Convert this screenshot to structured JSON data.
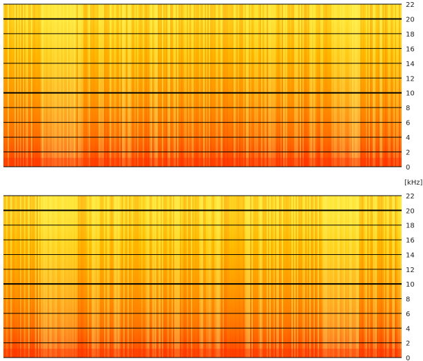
{
  "chart_data": [
    {
      "type": "heatmap",
      "channel": 1,
      "ylim": [
        0,
        22
      ],
      "ticks": [
        0,
        2,
        4,
        6,
        8,
        10,
        12,
        14,
        16,
        18,
        20,
        22
      ],
      "tick_labels": [
        "0",
        "2",
        "4",
        "6",
        "8",
        "10",
        "12",
        "14",
        "16",
        "18",
        "20",
        "22"
      ],
      "bold_grid_values": [
        10,
        20
      ],
      "grid": true,
      "colormap": [
        "#ff2a00",
        "#ff7a00",
        "#ffd000",
        "#ffff80"
      ],
      "intensity_by_band": [
        {
          "from": 0,
          "to": 2,
          "level": 0.1
        },
        {
          "from": 2,
          "to": 6,
          "level": 0.28
        },
        {
          "from": 6,
          "to": 12,
          "level": 0.45
        },
        {
          "from": 12,
          "to": 18,
          "level": 0.6
        },
        {
          "from": 18,
          "to": 22,
          "level": 0.75
        }
      ]
    },
    {
      "type": "heatmap",
      "channel": 2,
      "ylim": [
        0,
        22
      ],
      "ticks": [
        0,
        2,
        4,
        6,
        8,
        10,
        12,
        14,
        16,
        18,
        20,
        22
      ],
      "tick_labels": [
        "0",
        "2",
        "4",
        "6",
        "8",
        "10",
        "12",
        "14",
        "16",
        "18",
        "20",
        "22"
      ],
      "bold_grid_values": [
        10,
        20
      ],
      "grid": true,
      "colormap": [
        "#ff2a00",
        "#ff7a00",
        "#ffd000",
        "#ffff80"
      ],
      "intensity_by_band": [
        {
          "from": 0,
          "to": 2,
          "level": 0.12
        },
        {
          "from": 2,
          "to": 6,
          "level": 0.3
        },
        {
          "from": 6,
          "to": 12,
          "level": 0.47
        },
        {
          "from": 12,
          "to": 18,
          "level": 0.62
        },
        {
          "from": 18,
          "to": 22,
          "level": 0.76
        }
      ]
    }
  ],
  "unit_label": "[kHz]"
}
